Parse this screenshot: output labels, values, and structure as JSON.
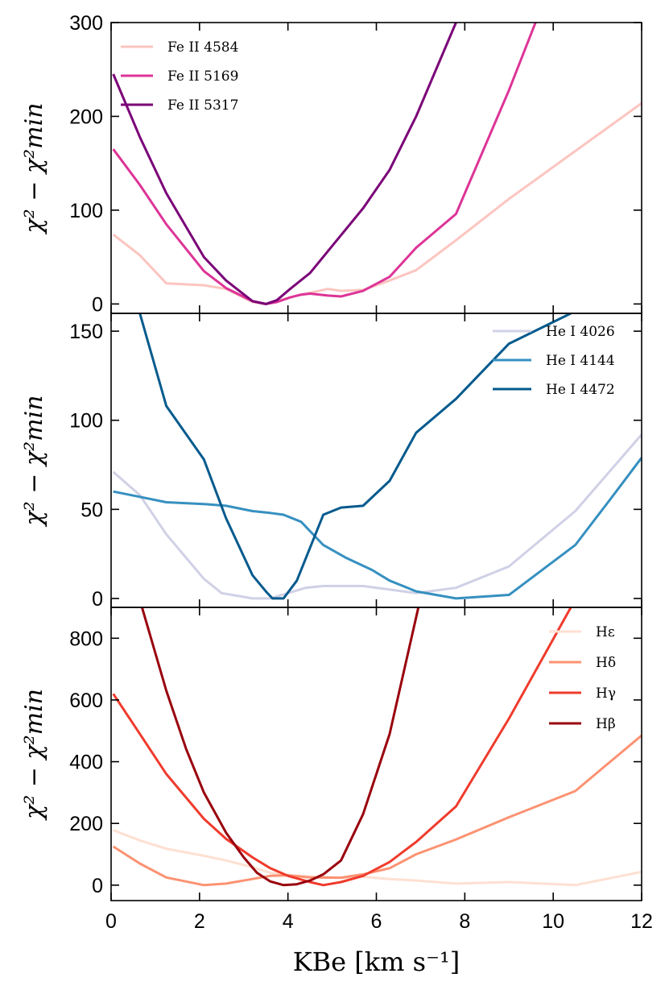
{
  "chart_data": [
    {
      "type": "line",
      "panel": "top",
      "ylabel": "χ² − χ²min",
      "xlim": [
        0,
        12
      ],
      "ylim": [
        -10,
        300
      ],
      "yticks": [
        0,
        100,
        200,
        300
      ],
      "legend_position": "top-left",
      "series": [
        {
          "name": "Fe II 4584",
          "color": "#fcc5c0",
          "x": [
            0.05,
            0.65,
            1.25,
            2.1,
            2.6,
            3.2,
            3.5,
            3.75,
            4.05,
            4.5,
            4.9,
            5.2,
            5.7,
            6.3,
            6.9,
            7.8,
            9.0,
            10.5,
            12.0
          ],
          "y": [
            74,
            52,
            22,
            20,
            16,
            2,
            0,
            3,
            7,
            12,
            16,
            14,
            15,
            25,
            36,
            68,
            112,
            163,
            214
          ]
        },
        {
          "name": "Fe II 5169",
          "color": "#dd3497",
          "x": [
            0.05,
            0.65,
            1.25,
            2.1,
            2.6,
            3.2,
            3.5,
            3.75,
            4.05,
            4.3,
            4.5,
            4.9,
            5.2,
            5.7,
            6.3,
            6.9,
            7.8,
            9.0,
            9.6
          ],
          "y": [
            165,
            127,
            85,
            35,
            17,
            3,
            0,
            2,
            7,
            10,
            11,
            9,
            8,
            14,
            29,
            60,
            96,
            228,
            300
          ]
        },
        {
          "name": "Fe II 5317",
          "color": "#7a0177",
          "x": [
            0.05,
            0.65,
            1.25,
            2.1,
            2.6,
            3.2,
            3.5,
            3.75,
            4.05,
            4.5,
            4.9,
            5.7,
            6.3,
            6.9,
            7.8
          ],
          "y": [
            245,
            178,
            118,
            50,
            25,
            3,
            0,
            4,
            16,
            33,
            56,
            102,
            143,
            200,
            300
          ]
        }
      ]
    },
    {
      "type": "line",
      "panel": "middle",
      "ylabel": "χ² − χ²min",
      "xlim": [
        0,
        12
      ],
      "ylim": [
        -5,
        160
      ],
      "yticks": [
        0,
        50,
        100,
        150
      ],
      "legend_position": "top-right",
      "series": [
        {
          "name": "He I 4026",
          "color": "#d0d1e6",
          "x": [
            0.05,
            0.65,
            1.25,
            2.1,
            2.5,
            3.2,
            3.6,
            4.0,
            4.4,
            4.8,
            5.2,
            5.7,
            6.3,
            6.9,
            7.8,
            9.0,
            10.5,
            12.0
          ],
          "y": [
            71,
            58,
            36,
            11,
            3,
            0,
            0,
            3,
            6,
            7,
            7,
            7,
            5,
            3,
            6,
            18,
            49,
            92
          ]
        },
        {
          "name": "He I 4144",
          "color": "#3690c0",
          "x": [
            0.05,
            0.65,
            1.25,
            2.1,
            2.6,
            3.2,
            3.6,
            3.9,
            4.3,
            4.8,
            5.3,
            5.9,
            6.3,
            6.9,
            7.8,
            9.0,
            10.5,
            11.3,
            12.0
          ],
          "y": [
            60,
            57,
            54,
            53,
            52,
            49,
            48,
            47,
            43,
            30,
            23,
            16,
            10,
            4,
            0,
            2,
            30,
            56,
            79
          ]
        },
        {
          "name": "He I 4472",
          "color": "#045a8d",
          "x": [
            0.65,
            1.25,
            2.1,
            2.6,
            3.2,
            3.5,
            3.65,
            3.9,
            4.2,
            4.8,
            5.2,
            5.7,
            6.3,
            6.9,
            7.8,
            9.0,
            10.4
          ],
          "y": [
            160,
            108,
            78,
            45,
            13,
            4,
            0,
            0,
            10,
            47,
            51,
            52,
            66,
            93,
            112,
            143,
            160
          ]
        }
      ]
    },
    {
      "type": "line",
      "panel": "bottom",
      "ylabel": "χ² − χ²min",
      "xlabel": "KBe [km s⁻¹]",
      "xlim": [
        0,
        12
      ],
      "ylim": [
        -50,
        900
      ],
      "xticks": [
        0,
        2,
        4,
        6,
        8,
        10,
        12
      ],
      "yticks": [
        0,
        200,
        400,
        600,
        800
      ],
      "legend_position": "top-right",
      "series": [
        {
          "name": "Hε",
          "color": "#fee0d2",
          "x": [
            0.05,
            0.65,
            1.25,
            2.1,
            2.6,
            3.2,
            3.6,
            4.0,
            4.5,
            5.2,
            5.7,
            6.3,
            6.9,
            7.8,
            9.0,
            10.5,
            12.0
          ],
          "y": [
            178,
            145,
            118,
            95,
            80,
            58,
            40,
            32,
            28,
            24,
            27,
            20,
            15,
            5,
            10,
            0,
            43
          ]
        },
        {
          "name": "Hδ",
          "color": "#fc9272",
          "x": [
            0.05,
            0.65,
            1.25,
            2.1,
            2.6,
            3.2,
            3.6,
            4.0,
            4.5,
            5.2,
            5.7,
            6.3,
            6.9,
            7.8,
            9.0,
            10.5,
            12.0
          ],
          "y": [
            125,
            70,
            25,
            0,
            5,
            20,
            30,
            32,
            25,
            24,
            35,
            55,
            100,
            148,
            220,
            305,
            485
          ]
        },
        {
          "name": "Hγ",
          "color": "#ef3b2c",
          "x": [
            0.05,
            0.65,
            1.25,
            2.1,
            2.6,
            3.2,
            3.6,
            4.0,
            4.5,
            4.8,
            5.2,
            5.7,
            6.3,
            6.9,
            7.8,
            9.0,
            10.4
          ],
          "y": [
            620,
            490,
            360,
            215,
            150,
            90,
            55,
            30,
            10,
            0,
            10,
            30,
            75,
            140,
            255,
            540,
            900
          ]
        },
        {
          "name": "Hβ",
          "color": "#99000d",
          "x": [
            0.7,
            1.25,
            1.7,
            2.1,
            2.6,
            3.0,
            3.3,
            3.6,
            3.9,
            4.2,
            4.5,
            4.8,
            5.2,
            5.7,
            6.3,
            6.95
          ],
          "y": [
            900,
            630,
            440,
            300,
            170,
            90,
            40,
            12,
            0,
            3,
            15,
            35,
            80,
            230,
            490,
            900
          ]
        }
      ]
    }
  ]
}
